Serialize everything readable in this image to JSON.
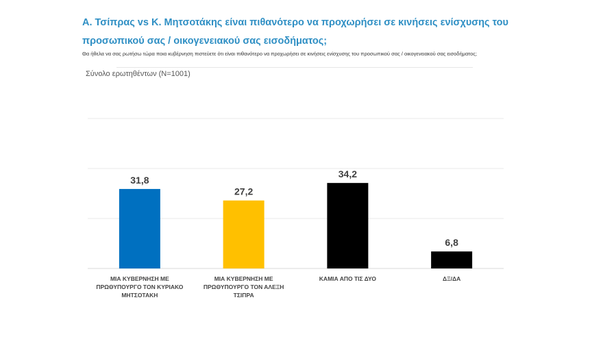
{
  "title": "Α. Τσίπρας vs Κ. Μητσοτάκης είναι πιθανότερο να προχωρήσει σε κινήσεις ενίσχυσης του προσωπικού σας / οικογενειακού σας εισοδήματος;",
  "question": "Θα ήθελα να σας ρωτήσω τώρα ποια κυβέρνηση πιστεύετε ότι είναι πιθανότερο να προχωρήσει σε κινήσεις ενίσχυσης του προσωπικού σας / οικογενειακού σας εισοδήματος;",
  "base": "Σύνολο ερωτηθέντων (N=1001)",
  "chart_data": {
    "type": "bar",
    "categories": [
      "ΜΙΑ ΚΥΒΕΡΝΗΣΗ ΜΕ ΠΡΩΘΥΠΟΥΡΓΟ ΤΟΝ ΚΥΡΙΑΚΟ ΜΗΤΣΟΤΑΚΗ",
      "ΜΙΑ ΚΥΒΕΡΝΗΣΗ ΜΕ ΠΡΩΘΥΠΟΥΡΓΟ ΤΟΝ ΑΛΕΞΗ ΤΣΙΠΡΑ",
      "ΚΑΜΙΑ ΑΠΟ ΤΙΣ ΔΥΟ",
      "ΔΞ/ΔΑ"
    ],
    "values": [
      31.8,
      27.2,
      34.2,
      6.8
    ],
    "labels": [
      "31,8",
      "27,2",
      "34,2",
      "6,8"
    ],
    "colors": [
      "#0070c0",
      "#ffc000",
      "#000000",
      "#000000"
    ],
    "ylim": [
      0,
      60
    ],
    "grid": true,
    "gridlines": [
      20,
      40,
      60
    ]
  }
}
